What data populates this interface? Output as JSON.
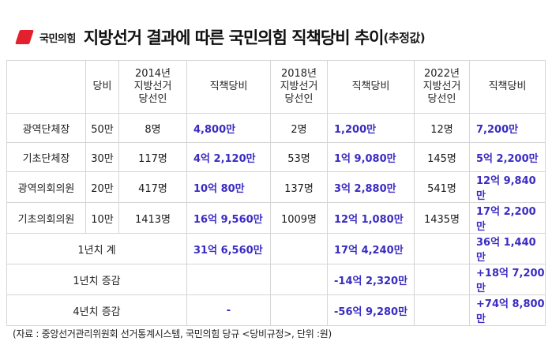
{
  "header": {
    "logo_text": "국민의힘",
    "title": "지방선거 결과에 따른 국민의힘 직책당비 추이",
    "title_sub": "(추정값)",
    "brand_color": "#e5202e",
    "value_color": "#3a2cc2",
    "logo_icon": "party-logo-icon"
  },
  "table": {
    "headers": [
      "",
      "당비",
      "2014년 지방선거 당선인",
      "직책당비",
      "2018년 지방선거 당선인",
      "직책당비",
      "2022년 지방선거 당선인",
      "직책당비"
    ],
    "rows": [
      {
        "label": "광역단체장",
        "fee": "50만",
        "w2014": "8명",
        "c2014": "4,800만",
        "w2018": "2명",
        "c2018": "1,200만",
        "w2022": "12명",
        "c2022": "7,200만"
      },
      {
        "label": "기초단체장",
        "fee": "30만",
        "w2014": "117명",
        "c2014": "4억 2,120만",
        "w2018": "53명",
        "c2018": "1억 9,080만",
        "w2022": "145명",
        "c2022": "5억 2,200만"
      },
      {
        "label": "광역의회의원",
        "fee": "20만",
        "w2014": "417명",
        "c2014": "10억 80만",
        "w2018": "137명",
        "c2018": "3억 2,880만",
        "w2022": "541명",
        "c2022": "12억 9,840만"
      },
      {
        "label": "기초의회의원",
        "fee": "10만",
        "w2014": "1413명",
        "c2014": "16억 9,560만",
        "w2018": "1009명",
        "c2018": "12억 1,080만",
        "w2022": "1435명",
        "c2022": "17억 2,200만"
      }
    ],
    "summary": [
      {
        "label": "1년치 계",
        "c2014": "31억 6,560만",
        "c2018": "17억 4,240만",
        "c2022": "36억 1,440만"
      },
      {
        "label": "1년치 증감",
        "c2014": "",
        "c2018": "-14억 2,320만",
        "c2022": "+18억 7,200만"
      },
      {
        "label": "4년치 증감",
        "c2014": "-",
        "c2018": "-56억 9,280만",
        "c2022": "+74억 8,800만"
      }
    ]
  },
  "source": "(자료 : 중앙선거관리위원회 선거통계시스템, 국민의힘 당규 <당비규정>, 단위 :원)"
}
